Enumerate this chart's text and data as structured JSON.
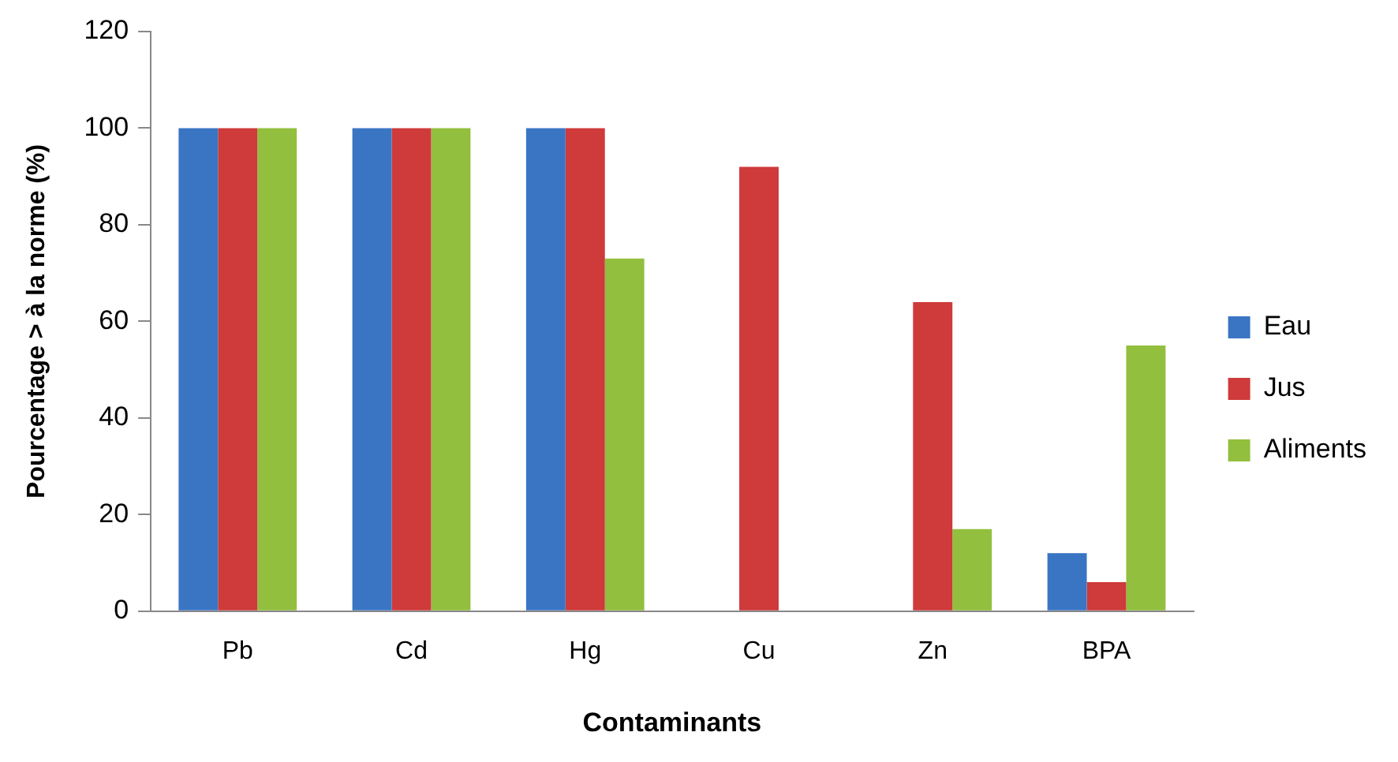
{
  "chart_data": {
    "type": "bar",
    "xlabel": "Contaminants",
    "ylabel": "Pourcentage > à la norme (%)",
    "categories": [
      "Pb",
      "Cd",
      "Hg",
      "Cu",
      "Zn",
      "BPA"
    ],
    "series": [
      {
        "name": "Eau",
        "color": "#3a75c4",
        "values": [
          100,
          100,
          100,
          0,
          0,
          12
        ]
      },
      {
        "name": "Jus",
        "color": "#cf3a3a",
        "values": [
          100,
          100,
          100,
          92,
          64,
          6
        ]
      },
      {
        "name": "Aliments",
        "color": "#92bf3e",
        "values": [
          100,
          100,
          73,
          0,
          17,
          55
        ]
      }
    ],
    "ylim": [
      0,
      120
    ],
    "yticks": [
      0,
      20,
      40,
      60,
      80,
      100,
      120
    ],
    "grid": false,
    "legend": "right"
  }
}
